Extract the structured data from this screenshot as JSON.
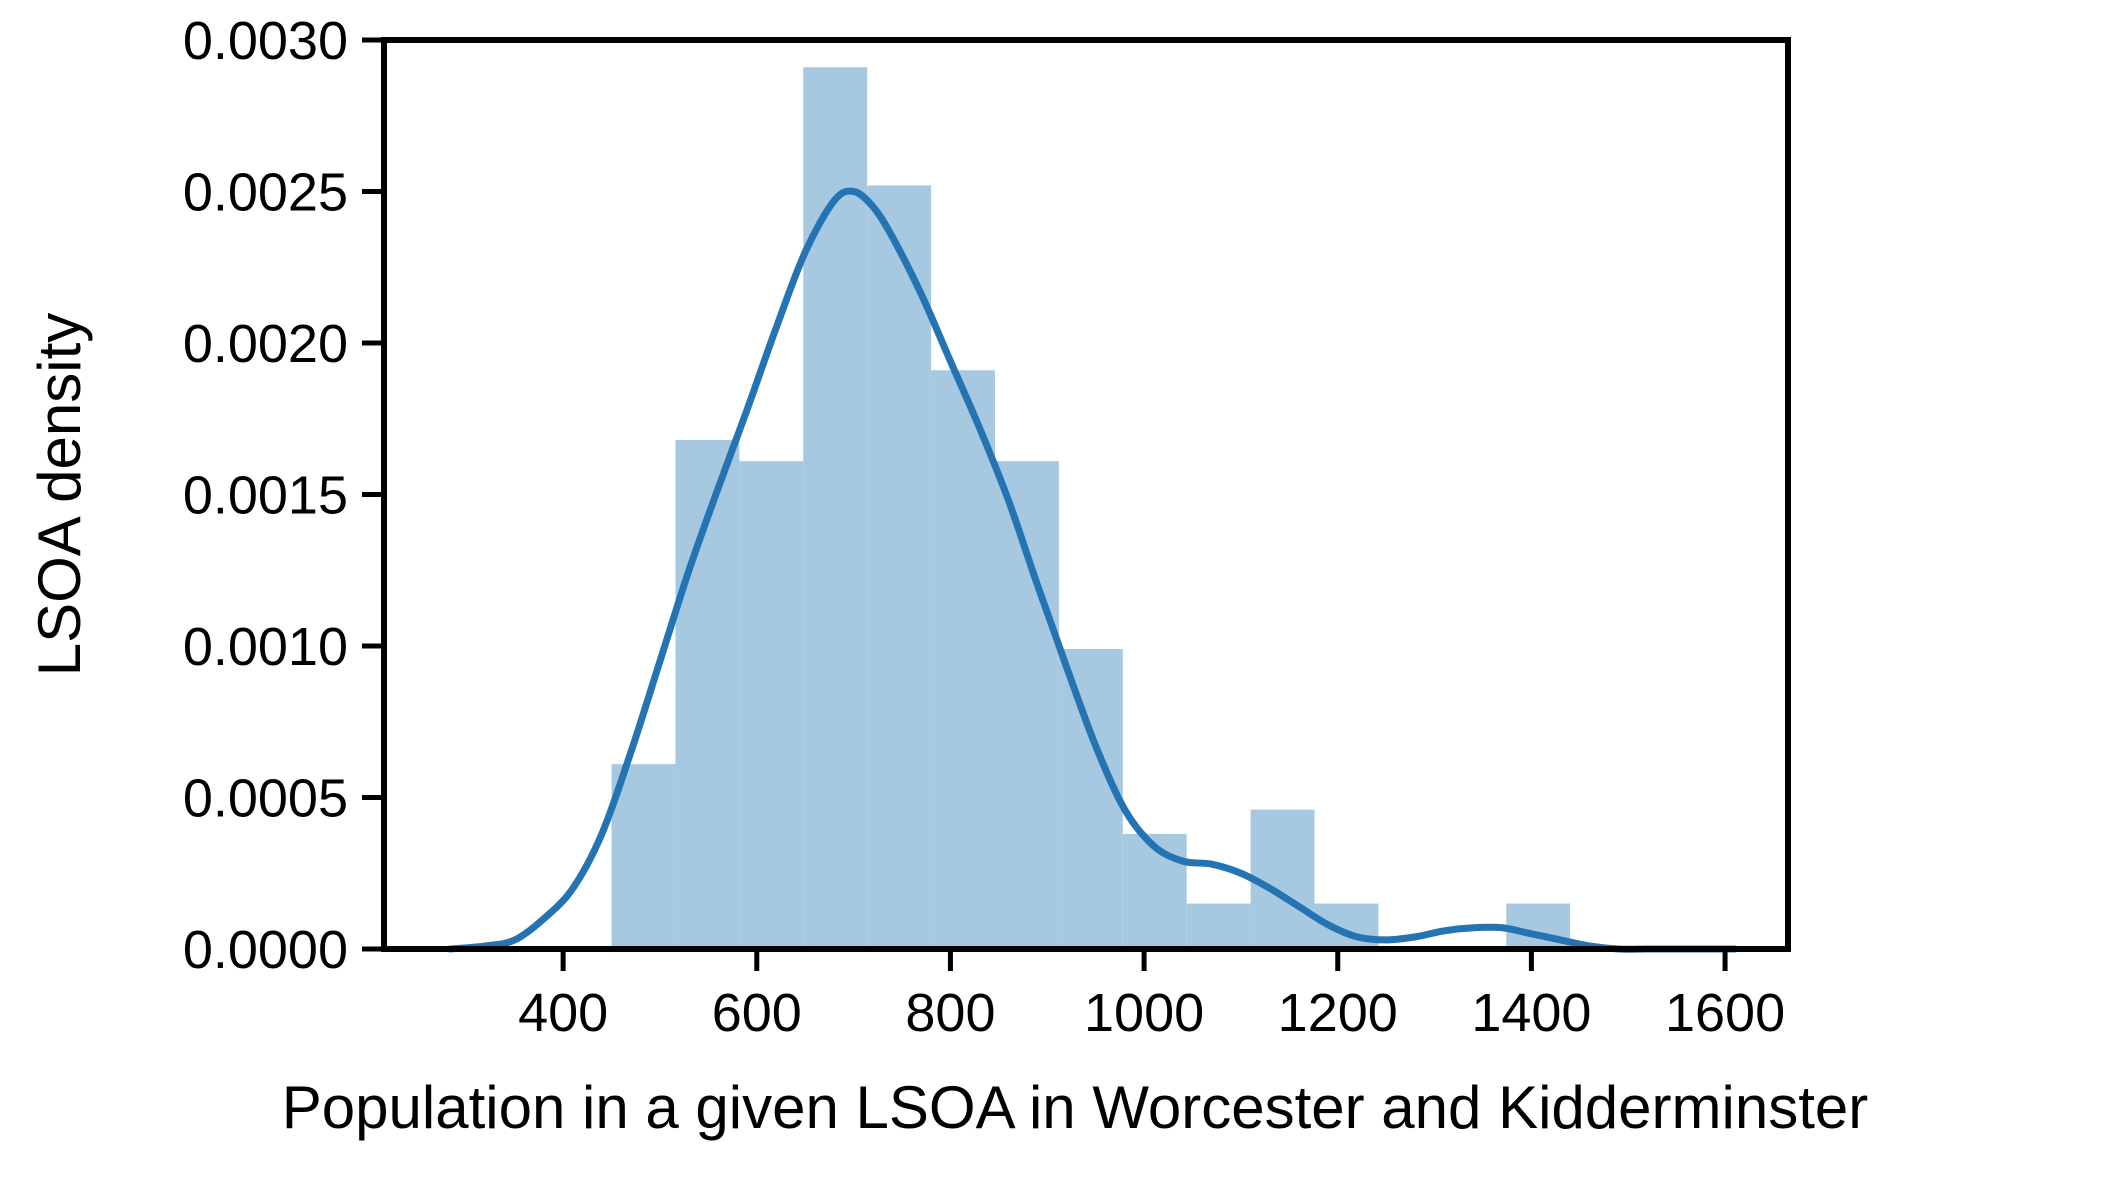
{
  "chart_data": {
    "type": "histogram",
    "title": "",
    "xlabel": "Population in a given LSOA in Worcester and Kidderminster",
    "ylabel": "LSOA density",
    "xlim": [
      215,
      1665
    ],
    "ylim": [
      0,
      0.003
    ],
    "x_ticks": [
      400,
      600,
      800,
      1000,
      1200,
      1400,
      1600
    ],
    "x_tick_labels": [
      "400",
      "600",
      "800",
      "1000",
      "1200",
      "1400",
      "1600"
    ],
    "y_ticks": [
      0,
      0.0005,
      0.001,
      0.0015,
      0.002,
      0.0025,
      0.003
    ],
    "y_tick_labels": [
      "0.0000",
      "0.0005",
      "0.0010",
      "0.0015",
      "0.0020",
      "0.0025",
      "0.0030"
    ],
    "grid": false,
    "legend": "none",
    "bar_color": "#a6c8e1",
    "kde_color": "#2474b4",
    "bins": [
      {
        "x0": 450,
        "x1": 516,
        "density": 0.00061
      },
      {
        "x0": 516,
        "x1": 582,
        "density": 0.00168
      },
      {
        "x0": 582,
        "x1": 648,
        "density": 0.00161
      },
      {
        "x0": 648,
        "x1": 714,
        "density": 0.00291
      },
      {
        "x0": 714,
        "x1": 780,
        "density": 0.00252
      },
      {
        "x0": 780,
        "x1": 846,
        "density": 0.00191
      },
      {
        "x0": 846,
        "x1": 912,
        "density": 0.00161
      },
      {
        "x0": 912,
        "x1": 978,
        "density": 0.00099
      },
      {
        "x0": 978,
        "x1": 1044,
        "density": 0.00038
      },
      {
        "x0": 1044,
        "x1": 1110,
        "density": 0.00015
      },
      {
        "x0": 1110,
        "x1": 1176,
        "density": 0.00046
      },
      {
        "x0": 1176,
        "x1": 1242,
        "density": 0.00015
      },
      {
        "x0": 1242,
        "x1": 1308,
        "density": 0
      },
      {
        "x0": 1308,
        "x1": 1374,
        "density": 0
      },
      {
        "x0": 1374,
        "x1": 1440,
        "density": 0.00015
      }
    ],
    "kde": {
      "x": [
        283,
        320,
        350,
        380,
        410,
        440,
        470,
        500,
        530,
        560,
        590,
        620,
        650,
        680,
        700,
        720,
        740,
        770,
        800,
        830,
        860,
        890,
        920,
        950,
        980,
        1010,
        1040,
        1070,
        1100,
        1130,
        1160,
        1190,
        1220,
        1250,
        1280,
        1310,
        1340,
        1370,
        1400,
        1430,
        1460,
        1490,
        1520,
        1550,
        1580,
        1610
      ],
      "y": [
        0.0,
        1e-05,
        3e-05,
        0.0001,
        0.0002,
        0.00038,
        0.00065,
        0.00095,
        0.00125,
        0.00152,
        0.00178,
        0.00205,
        0.0023,
        0.00247,
        0.0025,
        0.00245,
        0.00235,
        0.00216,
        0.00194,
        0.00172,
        0.00148,
        0.0012,
        0.00093,
        0.00067,
        0.00046,
        0.00034,
        0.00029,
        0.00028,
        0.00025,
        0.0002,
        0.00014,
        8e-05,
        4e-05,
        3e-05,
        4e-05,
        6e-05,
        7e-05,
        7e-05,
        5e-05,
        3e-05,
        1e-05,
        0.0,
        0.0,
        0.0,
        0.0,
        0.0
      ]
    }
  }
}
